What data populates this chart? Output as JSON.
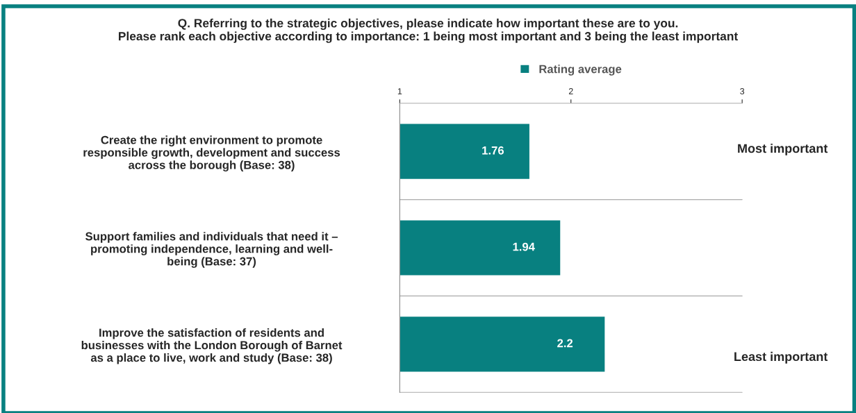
{
  "chart_data": {
    "type": "bar",
    "orientation": "horizontal",
    "title": "Q. Referring to the strategic objectives, please indicate how important these are to you.\nPlease rank each objective according to importance: 1 being most important and 3 being the least important",
    "categories": [
      "Create the right environment to promote\nresponsible growth, development and success\nacross the borough (Base: 38)",
      "Support families and individuals that need it –\npromoting independence, learning and well-\nbeing (Base: 37)",
      "Improve the satisfaction of residents and\nbusinesses with the London Borough of Barnet\nas a place to live, work and study (Base: 38)"
    ],
    "series": [
      {
        "name": "Rating average",
        "color": "#088080",
        "values": [
          1.76,
          1.94,
          2.2
        ]
      }
    ],
    "xlim": [
      1,
      3
    ],
    "xticks": [
      1,
      2,
      3
    ],
    "data_labels": true,
    "grid": "y",
    "legend": "top",
    "annotations": [
      "Most important",
      "Least important"
    ]
  }
}
